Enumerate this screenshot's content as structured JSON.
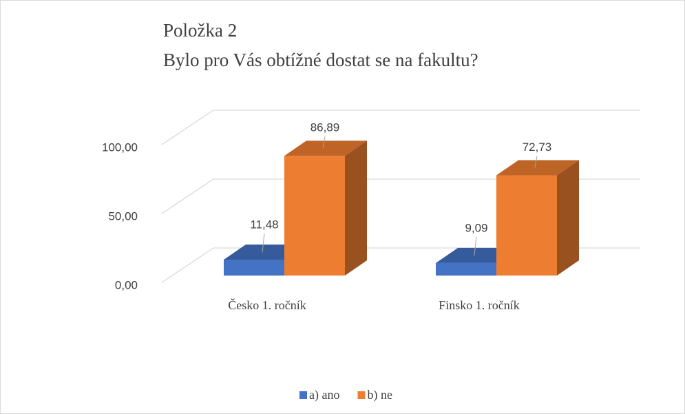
{
  "chart_data": {
    "type": "bar3d",
    "title": "Položka 2",
    "subtitle": "Bylo pro Vás obtížné dostat se na fakultu?",
    "categories": [
      "Česko 1. ročník",
      "Finsko 1. ročník"
    ],
    "series": [
      {
        "name": "a) ano",
        "color": "#4472c4",
        "values": [
          11.48,
          9.09
        ],
        "value_labels": [
          "11,48",
          "9,09"
        ]
      },
      {
        "name": "b) ne",
        "color": "#ed7d31",
        "values": [
          86.89,
          72.73
        ],
        "value_labels": [
          "86,89",
          "72,73"
        ]
      }
    ],
    "ylim": [
      0,
      100
    ],
    "yticks": [
      {
        "value": 0,
        "label": "0,00"
      },
      {
        "value": 50,
        "label": "50,00"
      },
      {
        "value": 100,
        "label": "100,00"
      }
    ],
    "grid": true,
    "legend": "bottom"
  }
}
